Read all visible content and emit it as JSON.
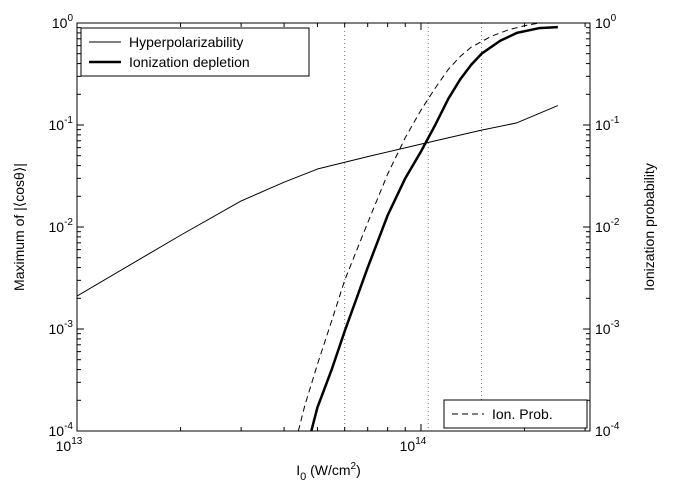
{
  "chart_data": {
    "type": "line",
    "x_scale": "log",
    "y_scale": "log",
    "xlim": [
      10000000000000.0,
      310000000000000.0
    ],
    "ylim": [
      0.0001,
      1
    ],
    "y2lim": [
      0.0001,
      1
    ],
    "x_ticks": [
      {
        "value": 10000000000000.0,
        "base": "10",
        "exp": "13"
      },
      {
        "value": 100000000000000.0,
        "base": "10",
        "exp": "14"
      }
    ],
    "y_ticks": [
      {
        "value": 1,
        "base": "10",
        "exp": "0"
      },
      {
        "value": 0.1,
        "base": "10",
        "exp": "-1"
      },
      {
        "value": 0.01,
        "base": "10",
        "exp": "-2"
      },
      {
        "value": 0.001,
        "base": "10",
        "exp": "-3"
      },
      {
        "value": 0.0001,
        "base": "10",
        "exp": "-4"
      }
    ],
    "xlabel": {
      "main": "I",
      "sub": "0",
      "rest": " (W/cm",
      "sup": "2",
      "end": ")"
    },
    "ylabel": "Maximum of |⟨cosθ⟩|",
    "y2label": "Ionization probability",
    "vlines": [
      60000000000000.0,
      105000000000000.0,
      150000000000000.0
    ],
    "legend_upper": [
      {
        "label": "Hyperpolarizability",
        "style": "thin"
      },
      {
        "label": "Ionization depletion",
        "style": "thick"
      }
    ],
    "legend_lower": [
      {
        "label": "Ion. Prob.",
        "style": "dashed"
      }
    ],
    "series": [
      {
        "name": "Hyperpolarizability",
        "style": "thin",
        "points": [
          [
            10000000000000.0,
            0.0021
          ],
          [
            15000000000000.0,
            0.0047
          ],
          [
            20000000000000.0,
            0.0083
          ],
          [
            30000000000000.0,
            0.018
          ],
          [
            40000000000000.0,
            0.0275
          ],
          [
            50000000000000.0,
            0.037
          ],
          [
            70000000000000.0,
            0.049
          ],
          [
            100000000000000.0,
            0.065
          ],
          [
            150000000000000.0,
            0.089
          ],
          [
            190000000000000.0,
            0.105
          ],
          [
            250000000000000.0,
            0.155
          ]
        ]
      },
      {
        "name": "Ionization depletion",
        "style": "thick",
        "points": [
          [
            48000000000000.0,
            0.0001
          ],
          [
            50000000000000.0,
            0.00017
          ],
          [
            55000000000000.0,
            0.0004
          ],
          [
            60000000000000.0,
            0.00095
          ],
          [
            70000000000000.0,
            0.004
          ],
          [
            80000000000000.0,
            0.013
          ],
          [
            90000000000000.0,
            0.03
          ],
          [
            100000000000000.0,
            0.055
          ],
          [
            110000000000000.0,
            0.1
          ],
          [
            120000000000000.0,
            0.18
          ],
          [
            130000000000000.0,
            0.28
          ],
          [
            140000000000000.0,
            0.39
          ],
          [
            150000000000000.0,
            0.5
          ],
          [
            170000000000000.0,
            0.67
          ],
          [
            190000000000000.0,
            0.8
          ],
          [
            220000000000000.0,
            0.89
          ],
          [
            250000000000000.0,
            0.91
          ]
        ]
      },
      {
        "name": "Ion. Prob.",
        "style": "dashed",
        "points": [
          [
            44000000000000.0,
            0.0001
          ],
          [
            46000000000000.0,
            0.00018
          ],
          [
            50000000000000.0,
            0.00045
          ],
          [
            55000000000000.0,
            0.0012
          ],
          [
            60000000000000.0,
            0.003
          ],
          [
            70000000000000.0,
            0.011
          ],
          [
            80000000000000.0,
            0.033
          ],
          [
            90000000000000.0,
            0.075
          ],
          [
            100000000000000.0,
            0.14
          ],
          [
            110000000000000.0,
            0.23
          ],
          [
            120000000000000.0,
            0.35
          ],
          [
            130000000000000.0,
            0.47
          ],
          [
            140000000000000.0,
            0.58
          ],
          [
            160000000000000.0,
            0.74
          ],
          [
            180000000000000.0,
            0.86
          ],
          [
            200000000000000.0,
            0.94
          ],
          [
            220000000000000.0,
            1.0
          ]
        ]
      }
    ]
  }
}
